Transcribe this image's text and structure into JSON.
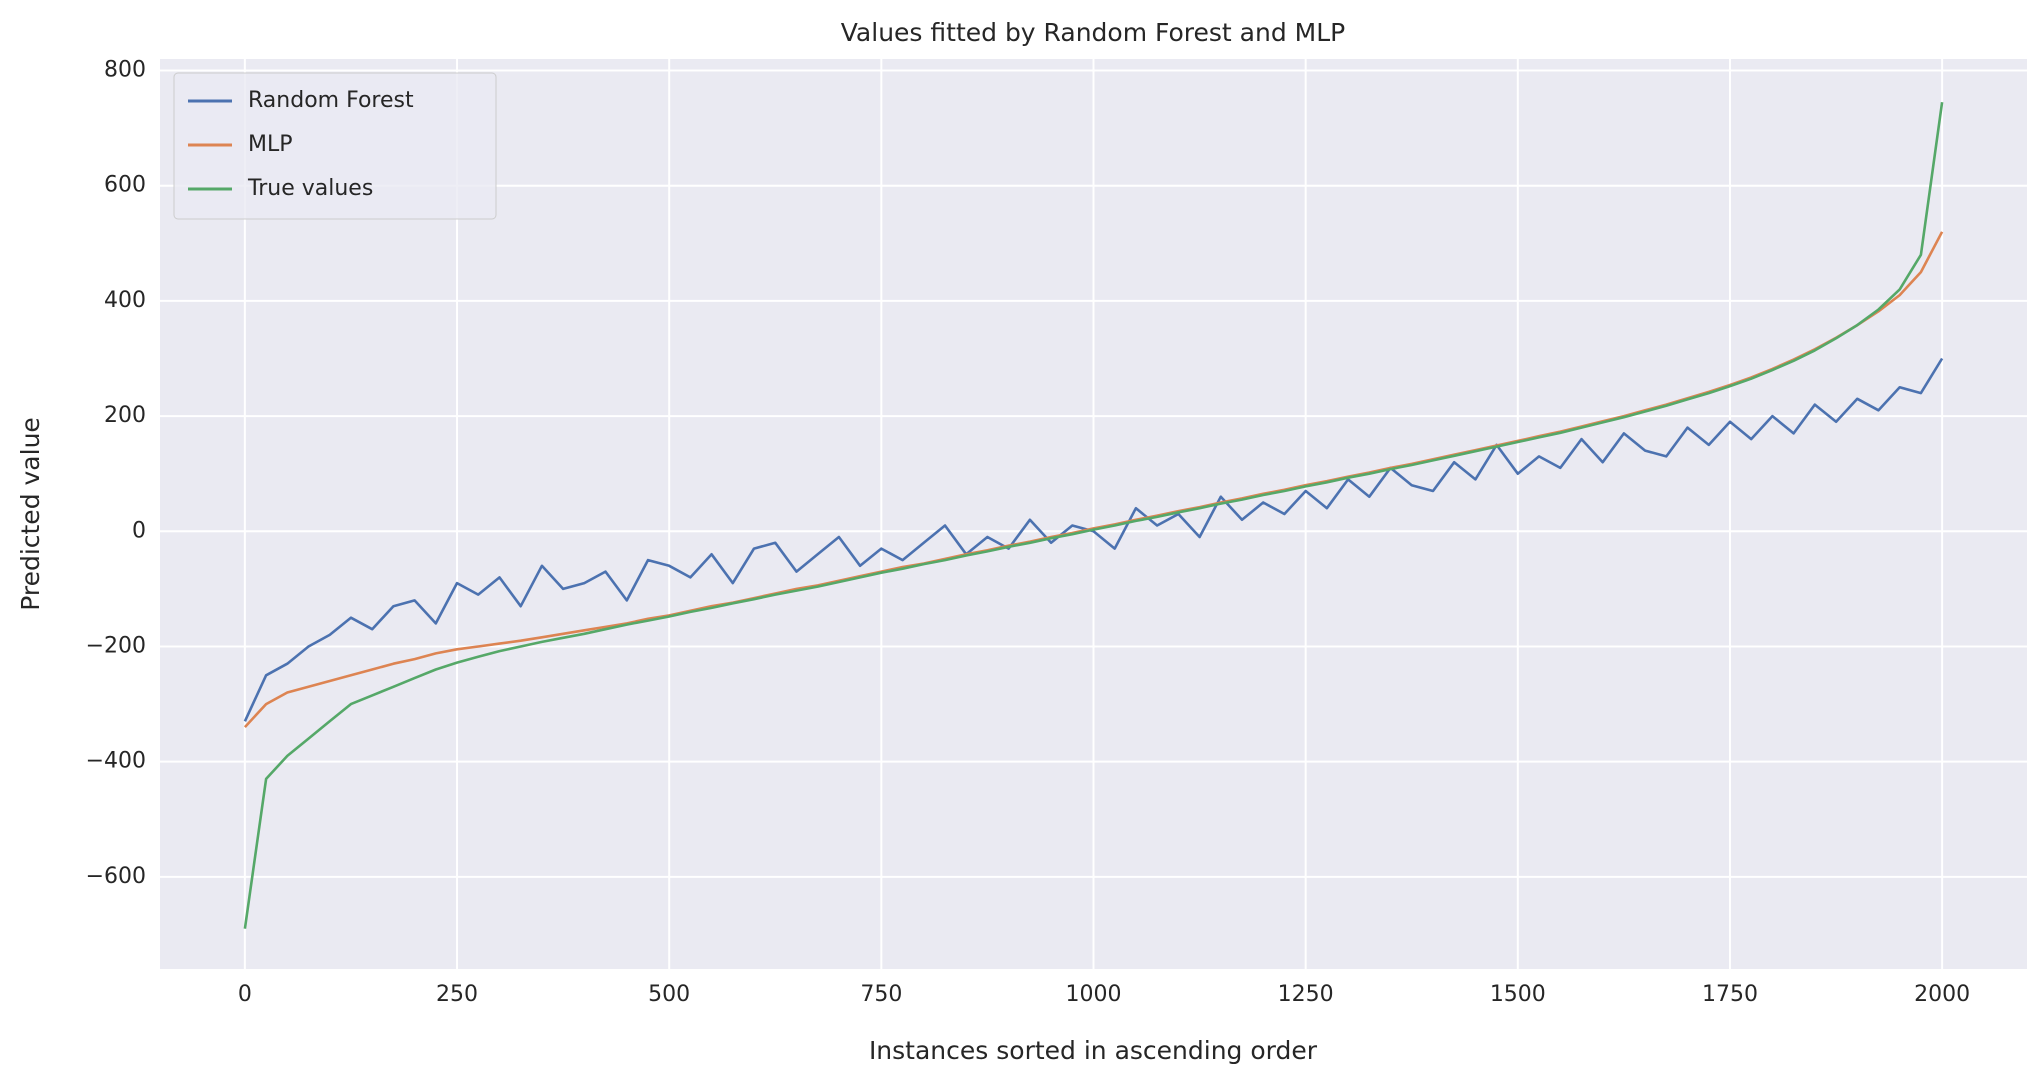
{
  "chart_data": {
    "type": "line",
    "title": "Values fitted by Random Forest and MLP",
    "x_label": "Instances sorted in ascending order",
    "y_label": "Predicted value",
    "x": [
      0,
      25,
      50,
      75,
      100,
      125,
      150,
      175,
      200,
      225,
      250,
      275,
      300,
      325,
      350,
      375,
      400,
      425,
      450,
      475,
      500,
      525,
      550,
      575,
      600,
      625,
      650,
      675,
      700,
      725,
      750,
      775,
      800,
      825,
      850,
      875,
      900,
      925,
      950,
      975,
      1000,
      1025,
      1050,
      1075,
      1100,
      1125,
      1150,
      1175,
      1200,
      1225,
      1250,
      1275,
      1300,
      1325,
      1350,
      1375,
      1400,
      1425,
      1450,
      1475,
      1500,
      1525,
      1550,
      1575,
      1600,
      1625,
      1650,
      1675,
      1700,
      1725,
      1750,
      1775,
      1800,
      1825,
      1850,
      1875,
      1900,
      1925,
      1950,
      1975,
      2000
    ],
    "series": [
      {
        "name": "Random Forest",
        "color": "#4c72b0",
        "values": [
          -330,
          -250,
          -230,
          -200,
          -180,
          -150,
          -170,
          -130,
          -120,
          -160,
          -90,
          -110,
          -80,
          -130,
          -60,
          -100,
          -90,
          -70,
          -120,
          -50,
          -60,
          -80,
          -40,
          -90,
          -30,
          -20,
          -70,
          -40,
          -10,
          -60,
          -30,
          -50,
          -20,
          10,
          -40,
          -10,
          -30,
          20,
          -20,
          10,
          0,
          -30,
          40,
          10,
          30,
          -10,
          60,
          20,
          50,
          30,
          70,
          40,
          90,
          60,
          110,
          80,
          70,
          120,
          90,
          150,
          100,
          130,
          110,
          160,
          120,
          170,
          140,
          130,
          180,
          150,
          190,
          160,
          200,
          170,
          220,
          190,
          230,
          210,
          250,
          240,
          300
        ]
      },
      {
        "name": "MLP",
        "color": "#dd8452",
        "values": [
          -340,
          -300,
          -280,
          -270,
          -260,
          -250,
          -240,
          -230,
          -222,
          -212,
          -205,
          -200,
          -195,
          -190,
          -184,
          -178,
          -172,
          -166,
          -160,
          -152,
          -146,
          -138,
          -130,
          -124,
          -116,
          -108,
          -100,
          -94,
          -86,
          -78,
          -70,
          -62,
          -56,
          -48,
          -40,
          -33,
          -25,
          -18,
          -10,
          -3,
          5,
          12,
          20,
          27,
          35,
          42,
          50,
          57,
          65,
          72,
          80,
          87,
          95,
          102,
          110,
          117,
          125,
          133,
          141,
          149,
          157,
          165,
          173,
          182,
          191,
          200,
          210,
          220,
          231,
          242,
          254,
          267,
          282,
          298,
          316,
          336,
          358,
          382,
          410,
          450,
          520
        ]
      },
      {
        "name": "True values",
        "color": "#55a868",
        "values": [
          -690,
          -430,
          -390,
          -360,
          -330,
          -300,
          -285,
          -270,
          -255,
          -240,
          -228,
          -218,
          -208,
          -200,
          -192,
          -185,
          -178,
          -170,
          -162,
          -155,
          -148,
          -140,
          -133,
          -125,
          -118,
          -110,
          -103,
          -96,
          -88,
          -80,
          -72,
          -65,
          -57,
          -50,
          -42,
          -35,
          -27,
          -20,
          -12,
          -5,
          3,
          10,
          18,
          25,
          33,
          40,
          48,
          55,
          63,
          70,
          78,
          85,
          93,
          100,
          108,
          115,
          123,
          131,
          139,
          147,
          155,
          163,
          171,
          180,
          189,
          198,
          208,
          218,
          229,
          240,
          252,
          265,
          280,
          296,
          314,
          335,
          358,
          385,
          420,
          480,
          745
        ]
      }
    ],
    "xlim": [
      -100,
      2100
    ],
    "ylim": [
      -760,
      820
    ],
    "xticks": [
      0,
      250,
      500,
      750,
      1000,
      1250,
      1500,
      1750,
      2000
    ],
    "yticks": [
      {
        "value": -600,
        "label": "−600"
      },
      {
        "value": -400,
        "label": "−400"
      },
      {
        "value": -200,
        "label": "−200"
      },
      0,
      200,
      400,
      600,
      800
    ],
    "grid": true,
    "legend": "upper left"
  }
}
